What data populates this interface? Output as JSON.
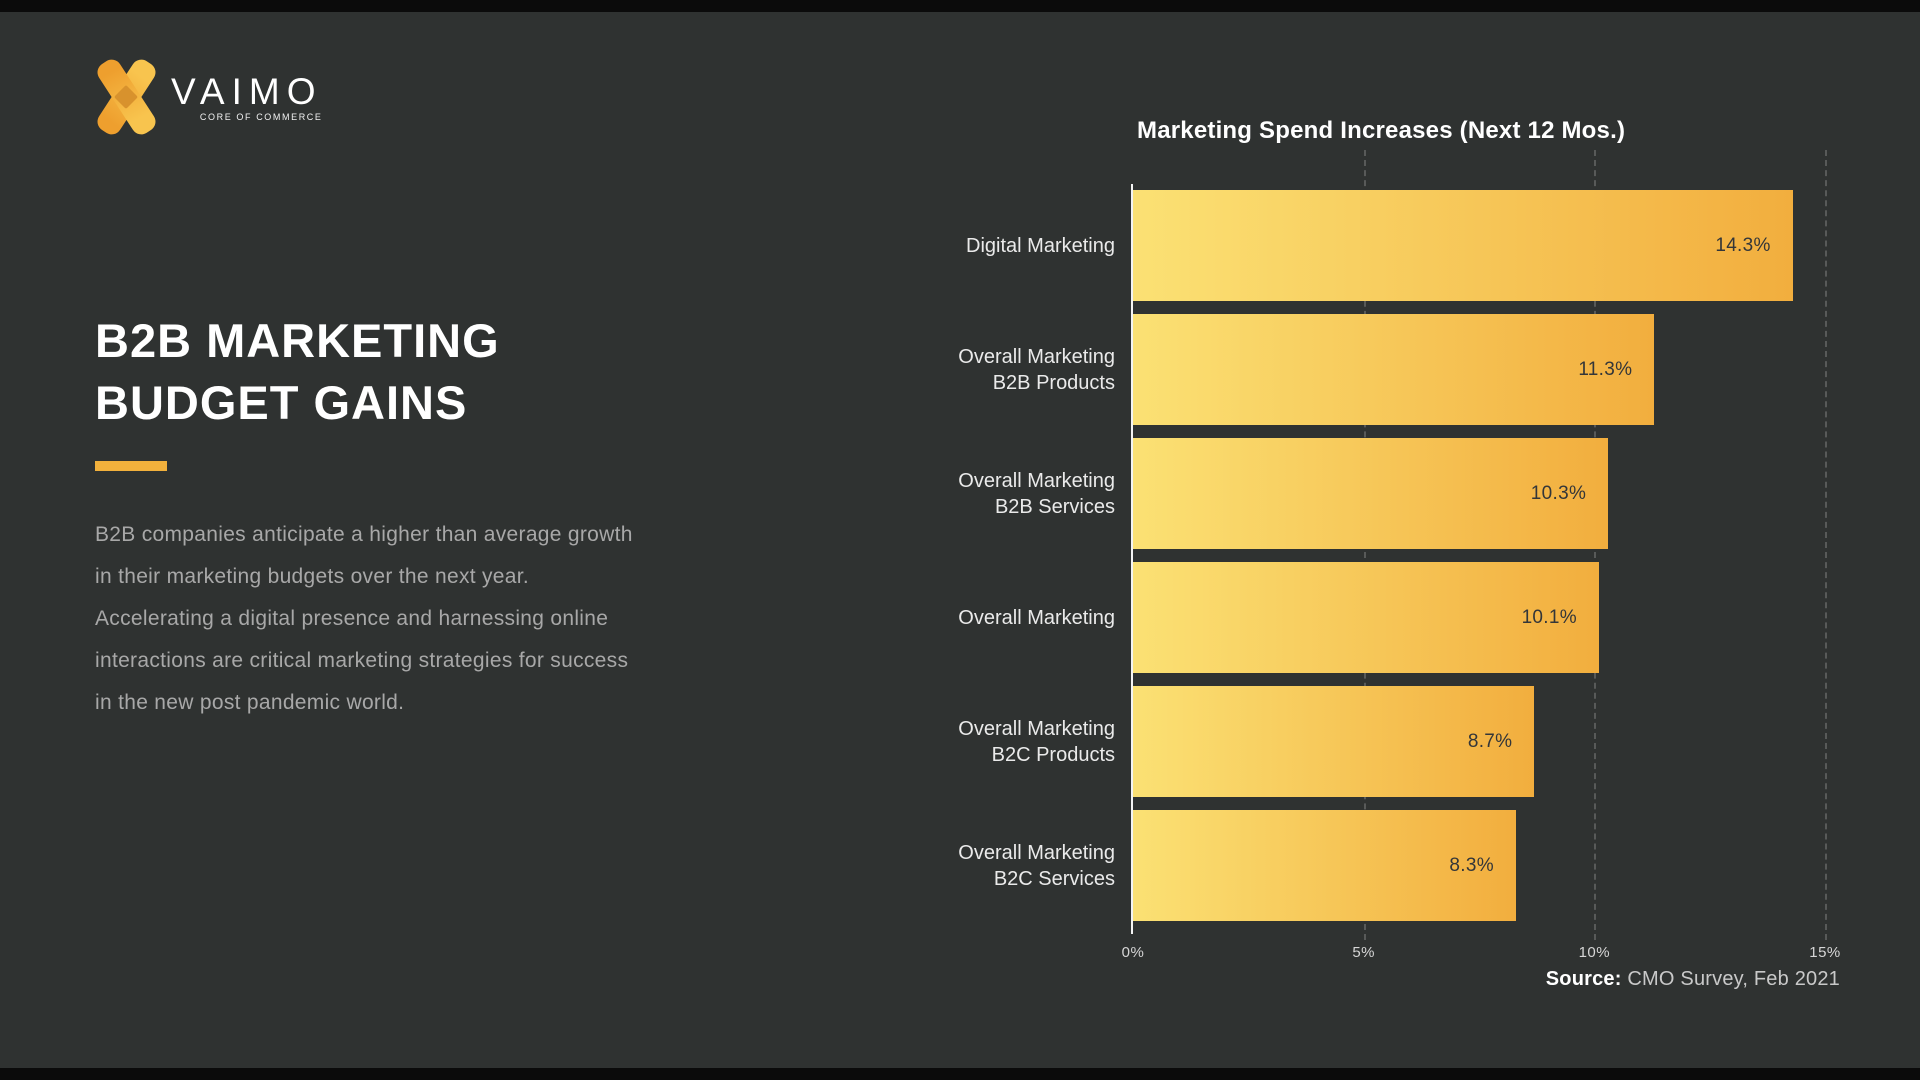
{
  "page": {
    "background": "#2f3231",
    "letterbox_color": "#0b0b0b"
  },
  "logo": {
    "brand": "VAIMO",
    "tagline": "CORE OF COMMERCE",
    "x_color": "#f2a93c",
    "x_core_color": "#d8922d"
  },
  "intro": {
    "title": "B2B MARKETING\nBUDGET GAINS",
    "accent_color": "#f2b13c",
    "body": "B2B companies anticipate a higher than average growth\nin their marketing budgets over the next year.\nAccelerating a digital presence and harnessing online\ninteractions are critical marketing strategies for success\nin the new post pandemic world."
  },
  "chart_data": {
    "type": "bar",
    "orientation": "horizontal",
    "title": "Marketing Spend Increases (Next 12 Mos.)",
    "categories": [
      "Digital Marketing",
      "Overall Marketing\nB2B Products",
      "Overall Marketing\nB2B Services",
      "Overall Marketing",
      "Overall Marketing\nB2C Products",
      "Overall Marketing\nB2C Services"
    ],
    "values": [
      14.3,
      11.3,
      10.3,
      10.1,
      8.7,
      8.3
    ],
    "value_suffix": "%",
    "xlabel": "",
    "ylabel": "",
    "xlim": [
      0,
      15
    ],
    "ticks": [
      0,
      5,
      10,
      15
    ],
    "tick_labels": [
      "0%",
      "5%",
      "10%",
      "15%"
    ],
    "grid": "dashed-vertical-at-5-10-15",
    "legend": "none",
    "bar_gradient": [
      "#fbe174",
      "#f2ae3e"
    ],
    "value_label_color": "#333639"
  },
  "source": {
    "label": "Source:",
    "text": " CMO Survey, Feb 2021"
  }
}
